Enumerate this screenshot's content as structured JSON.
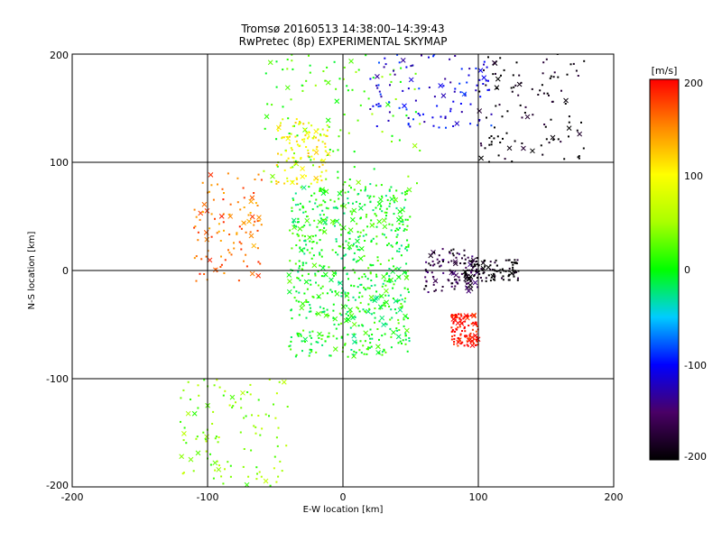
{
  "chart_data": {
    "type": "scatter",
    "title": "Tromsø 20160513 14:38:00–14:39:43",
    "subtitle": "RwPretec (8p) EXPERIMENTAL SKYMAP",
    "xlabel": "E-W location [km]",
    "ylabel": "N-S location [km]",
    "xlim": [
      -200,
      200
    ],
    "ylim": [
      -200,
      200
    ],
    "xticks": [
      "-200",
      "-100",
      "0",
      "100",
      "200"
    ],
    "yticks": [
      "-200",
      "-100",
      "0",
      "100",
      "200"
    ],
    "grid": true,
    "colorbar": {
      "label": "[m/s]",
      "min": -200,
      "max": 200,
      "ticks": [
        "-200",
        "-100",
        "0",
        "100",
        "200"
      ]
    },
    "markers": [
      "dot",
      "x"
    ],
    "clusters": [
      {
        "region": "central swarm",
        "x": [
          -40,
          50
        ],
        "y": [
          -80,
          80
        ],
        "velocity": 0
      },
      {
        "region": "upper middle",
        "x": [
          -60,
          60
        ],
        "y": [
          80,
          200
        ],
        "velocity": 20
      },
      {
        "region": "upper right",
        "x": [
          20,
          110
        ],
        "y": [
          130,
          200
        ],
        "velocity": -110
      },
      {
        "region": "far upper right",
        "x": [
          100,
          180
        ],
        "y": [
          100,
          200
        ],
        "velocity": -200
      },
      {
        "region": "left mid",
        "x": [
          -110,
          -60
        ],
        "y": [
          -10,
          90
        ],
        "velocity": 160
      },
      {
        "region": "upper left-center",
        "x": [
          -50,
          -10
        ],
        "y": [
          80,
          140
        ],
        "velocity": 100
      },
      {
        "region": "right purple",
        "x": [
          60,
          100
        ],
        "y": [
          -20,
          20
        ],
        "velocity": -170
      },
      {
        "region": "right black",
        "x": [
          90,
          130
        ],
        "y": [
          -10,
          10
        ],
        "velocity": -200
      },
      {
        "region": "right red",
        "x": [
          80,
          100
        ],
        "y": [
          -70,
          -40
        ],
        "velocity": 200
      },
      {
        "region": "lower left",
        "x": [
          -120,
          -40
        ],
        "y": [
          -200,
          -100
        ],
        "velocity": 40
      }
    ]
  }
}
